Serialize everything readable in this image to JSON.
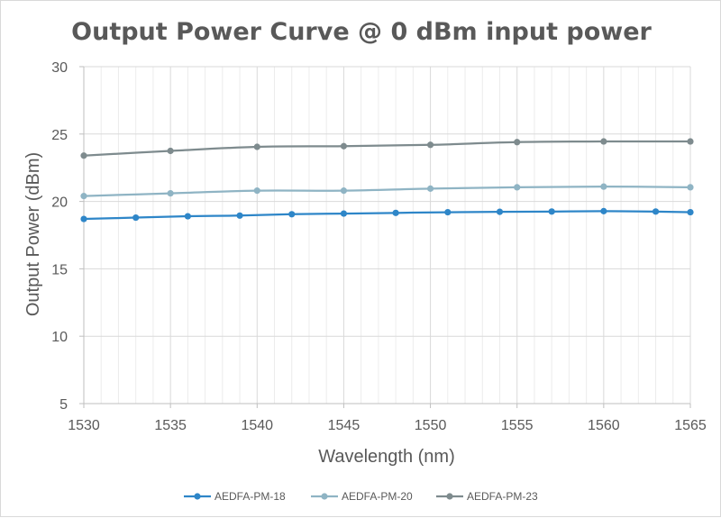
{
  "chart_data": {
    "type": "line",
    "title": "Output Power Curve @ 0 dBm input power",
    "xlabel": "Wavelength (nm)",
    "ylabel": "Output Power (dBm)",
    "xlim": [
      1530,
      1565
    ],
    "ylim": [
      5,
      30
    ],
    "x_ticks": [
      "1530",
      "1535",
      "1540",
      "1545",
      "1550",
      "1555",
      "1560",
      "1565"
    ],
    "y_ticks": [
      "5",
      "10",
      "15",
      "20",
      "25",
      "30"
    ],
    "grid": {
      "horizontal": true,
      "vertical_major": true,
      "vertical_minor": true
    },
    "legend_position": "bottom",
    "series": [
      {
        "name": "AEDFA-PM-18",
        "color": "#2e86c8",
        "x": [
          1530,
          1533,
          1536,
          1539,
          1542,
          1545,
          1548,
          1551,
          1554,
          1557,
          1560,
          1563,
          1565
        ],
        "y": [
          18.7,
          18.8,
          18.9,
          18.95,
          19.05,
          19.1,
          19.15,
          19.2,
          19.23,
          19.25,
          19.28,
          19.25,
          19.2
        ]
      },
      {
        "name": "AEDFA-PM-20",
        "color": "#8fb4c4",
        "x": [
          1530,
          1535,
          1540,
          1545,
          1550,
          1555,
          1560,
          1565
        ],
        "y": [
          20.4,
          20.6,
          20.8,
          20.8,
          20.95,
          21.05,
          21.1,
          21.05
        ]
      },
      {
        "name": "AEDFA-PM-23",
        "color": "#7e8b8e",
        "x": [
          1530,
          1535,
          1540,
          1545,
          1550,
          1555,
          1560,
          1565
        ],
        "y": [
          23.4,
          23.75,
          24.05,
          24.1,
          24.2,
          24.4,
          24.45,
          24.45
        ]
      }
    ]
  }
}
